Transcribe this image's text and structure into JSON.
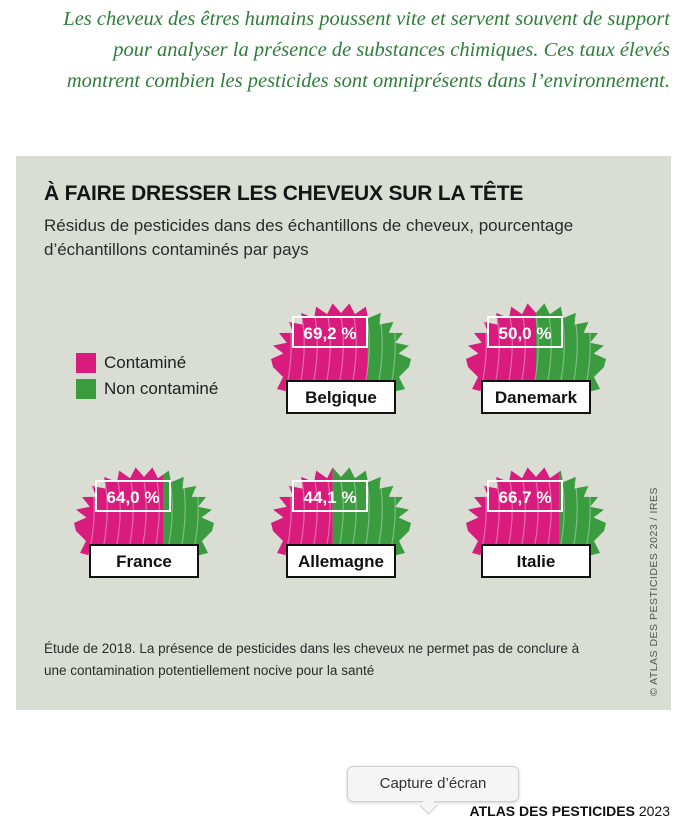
{
  "intro_text": "Les cheveux des êtres humains poussent vite et servent souvent de support pour analyser la présence de substances chimiques. Ces taux élevés montrent combien les pesticides sont omniprésents dans l’environnement.",
  "chart_data": {
    "type": "pie",
    "title": "À FAIRE DRESSER LES CHEVEUX SUR LA TÊTE",
    "subtitle": "Résidus de pesticides dans des échantillons de cheveux, pourcentage d’échantillons contaminés par pays",
    "legend": [
      {
        "label": "Contaminé",
        "color": "#d81b7c"
      },
      {
        "label": "Non contaminé",
        "color": "#3a9b3f"
      }
    ],
    "categories": [
      "Belgique",
      "Danemark",
      "France",
      "Allemagne",
      "Italie"
    ],
    "values": [
      69.2,
      50.0,
      64.0,
      44.1,
      66.7
    ],
    "value_labels": [
      "69,2 %",
      "50,0 %",
      "64,0 %",
      "44,1 %",
      "66,7 %"
    ],
    "unit": "%"
  },
  "footnote": "Étude de 2018. La présence de pesticides dans les cheveux ne permet pas de conclure à une contamination potentiellement nocive pour la santé",
  "credit": "© ATLAS DES PESTICIDES 2023 / IRES",
  "tooltip": "Capture d’écran",
  "brand": {
    "bold": "ATLAS DES PESTICIDES",
    "year": " 2023"
  }
}
